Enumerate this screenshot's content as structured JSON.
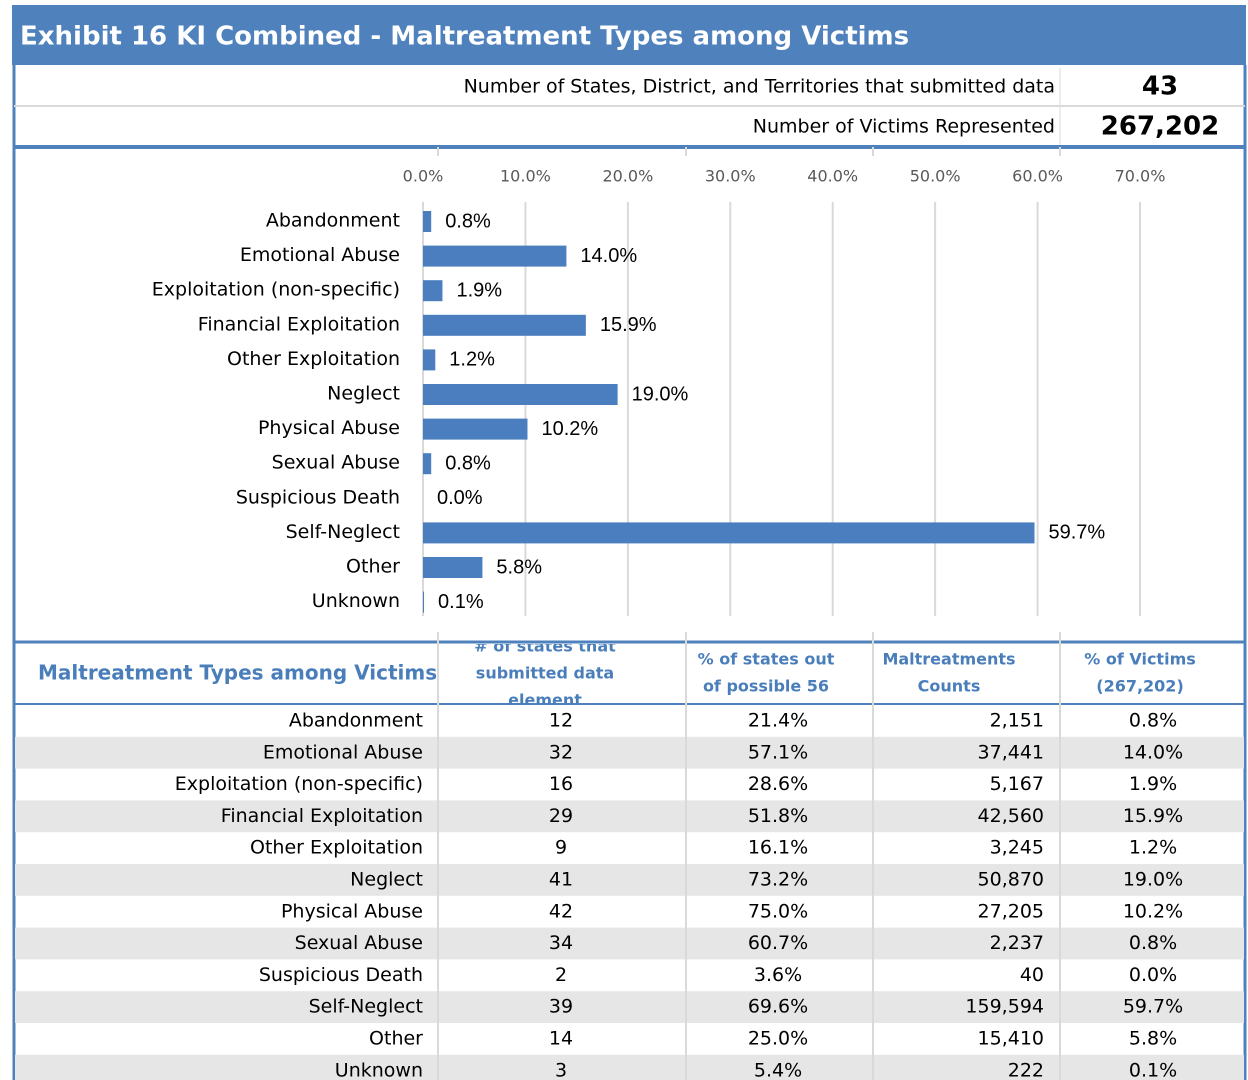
{
  "header": {
    "title": "Exhibit 16 KI Combined - Maltreatment Types among Victims"
  },
  "summary": [
    {
      "label": "Number of States, District, and Territories that submitted data",
      "value": "43"
    },
    {
      "label": "Number of Victims Represented",
      "value": "267,202"
    }
  ],
  "chart_data": {
    "type": "bar",
    "orientation": "horizontal",
    "categories": [
      "Abandonment",
      "Emotional Abuse",
      "Exploitation (non-specific)",
      "Financial Exploitation",
      "Other Exploitation",
      "Neglect",
      "Physical Abuse",
      "Sexual Abuse",
      "Suspicious Death",
      "Self-Neglect",
      "Other",
      "Unknown"
    ],
    "values": [
      0.8,
      14.0,
      1.9,
      15.9,
      1.2,
      19.0,
      10.2,
      0.8,
      0.0,
      59.7,
      5.8,
      0.1
    ],
    "value_labels": [
      "0.8%",
      "14.0%",
      "1.9%",
      "15.9%",
      "1.2%",
      "19.0%",
      "10.2%",
      "0.8%",
      "0.0%",
      "59.7%",
      "5.8%",
      "0.1%"
    ],
    "color": "#4a7ebf",
    "xlim": [
      0,
      70
    ],
    "xticks": [
      {
        "value": 0,
        "label": "0.0%"
      },
      {
        "value": 10,
        "label": "10.0%"
      },
      {
        "value": 20,
        "label": "20.0%"
      },
      {
        "value": 30,
        "label": "30.0%"
      },
      {
        "value": 40,
        "label": "40.0%"
      },
      {
        "value": 50,
        "label": "50.0%"
      },
      {
        "value": 60,
        "label": "60.0%"
      },
      {
        "value": 70,
        "label": "70.0%"
      }
    ],
    "grid": true
  },
  "table": {
    "headers": [
      [
        "Maltreatment Types among Victims"
      ],
      [
        "# of states that",
        "submitted data",
        "element"
      ],
      [
        "% of states out",
        "of possible 56"
      ],
      [
        "Maltreatments",
        "Counts"
      ],
      [
        "% of Victims",
        "(267,202)"
      ]
    ],
    "rows": [
      [
        "Abandonment",
        "12",
        "21.4%",
        "2,151",
        "0.8%"
      ],
      [
        "Emotional Abuse",
        "32",
        "57.1%",
        "37,441",
        "14.0%"
      ],
      [
        "Exploitation (non-specific)",
        "16",
        "28.6%",
        "5,167",
        "1.9%"
      ],
      [
        "Financial Exploitation",
        "29",
        "51.8%",
        "42,560",
        "15.9%"
      ],
      [
        "Other Exploitation",
        "9",
        "16.1%",
        "3,245",
        "1.2%"
      ],
      [
        "Neglect",
        "41",
        "73.2%",
        "50,870",
        "19.0%"
      ],
      [
        "Physical Abuse",
        "42",
        "75.0%",
        "27,205",
        "10.2%"
      ],
      [
        "Sexual Abuse",
        "34",
        "60.7%",
        "2,237",
        "0.8%"
      ],
      [
        "Suspicious Death",
        "2",
        "3.6%",
        "40",
        "0.0%"
      ],
      [
        "Self-Neglect",
        "39",
        "69.6%",
        "159,594",
        "59.7%"
      ],
      [
        "Other",
        "14",
        "25.0%",
        "15,410",
        "5.8%"
      ],
      [
        "Unknown",
        "3",
        "5.4%",
        "222",
        "0.1%"
      ]
    ]
  }
}
